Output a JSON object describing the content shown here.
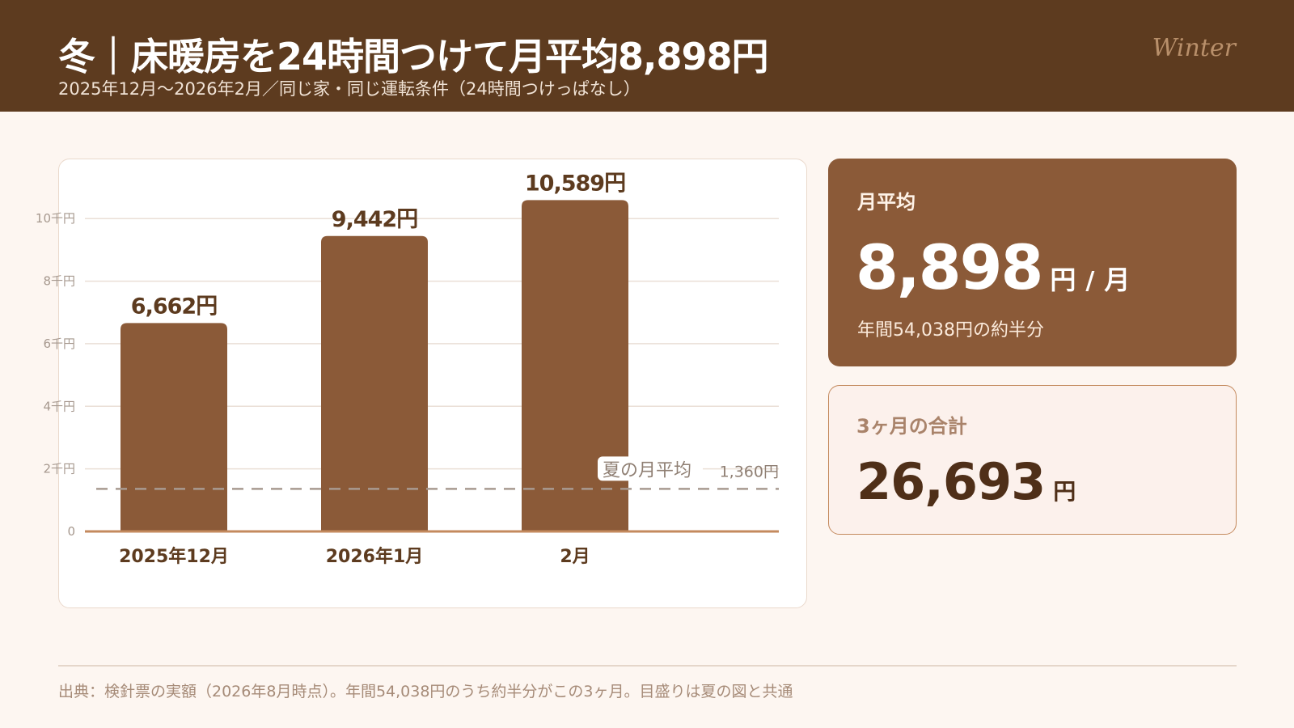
{
  "header": {
    "title": "冬｜床暖房を24時間つけて月平均8,898円",
    "subtitle": "2025年12月〜2026年2月／同じ家・同じ運転条件（24時間つけっぱなし）",
    "season": "Winter"
  },
  "colors": {
    "header_bg": "#5d3b1f",
    "bar": "#8b5a38",
    "accent_dark": "#5d3b1f",
    "reference_line": "#a89a90",
    "page_bg": "#fdf6f1"
  },
  "chart_data": {
    "type": "bar",
    "categories": [
      "2025年12月",
      "2026年1月",
      "2月"
    ],
    "values": [
      6662,
      9442,
      10589
    ],
    "value_labels": [
      "6,662円",
      "9,442円",
      "10,589円"
    ],
    "ylim": [
      0,
      10600
    ],
    "yticks": [
      0,
      2000,
      4000,
      6000,
      8000,
      10000
    ],
    "ytick_labels": [
      "0",
      "2千円",
      "4千円",
      "6千円",
      "8千円",
      "10千円"
    ],
    "grid": true,
    "reference": {
      "value": 1360,
      "label": "夏の月平均",
      "value_label": "1,360円",
      "style": "dashed"
    }
  },
  "stat": {
    "label": "月平均",
    "value": "8,898",
    "unit": "円",
    "separator": "/",
    "per": "月",
    "note": "年間54,038円の約半分"
  },
  "total": {
    "label": "3ヶ月の合計",
    "value": "26,693",
    "unit": "円"
  },
  "footer": {
    "text": "出典：検針票の実額（2026年8月時点）。年間54,038円のうち約半分がこの3ヶ月。目盛りは夏の図と共通"
  }
}
